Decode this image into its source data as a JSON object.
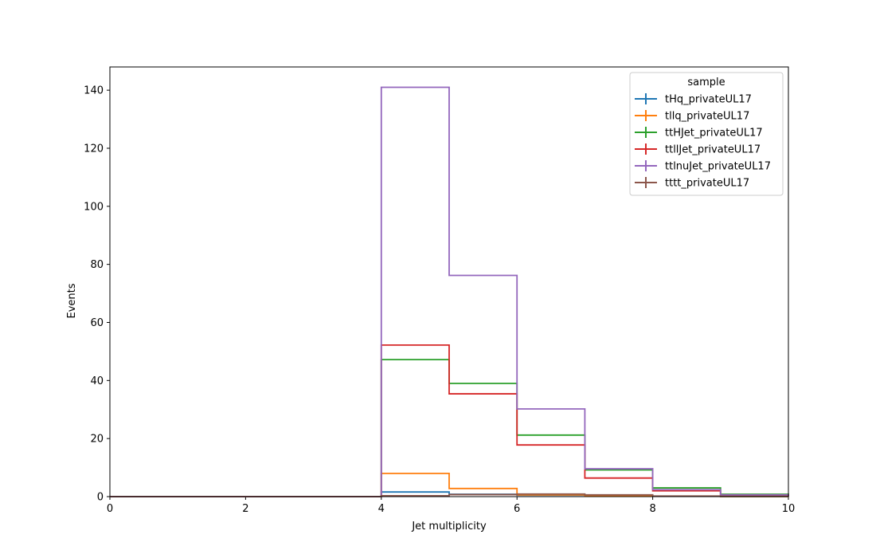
{
  "chart_data": {
    "type": "step",
    "xlabel": "Jet multiplicity",
    "ylabel": "Events",
    "xlim": [
      0,
      10
    ],
    "ylim": [
      0,
      148
    ],
    "x_ticks": [
      0,
      2,
      4,
      6,
      8,
      10
    ],
    "y_ticks": [
      0,
      20,
      40,
      60,
      80,
      100,
      120,
      140
    ],
    "bin_edges": [
      0,
      1,
      2,
      3,
      4,
      5,
      6,
      7,
      8,
      9,
      10
    ],
    "grid": false,
    "legend": {
      "title": "sample",
      "placement": "top-right"
    },
    "series": [
      {
        "name": "tHq_privateUL17",
        "color": "#1f77b4",
        "values": [
          0,
          0,
          0,
          0,
          1.6,
          0.8,
          0.5,
          0.2,
          0.1,
          0.05
        ]
      },
      {
        "name": "tllq_privateUL17",
        "color": "#ff7f0e",
        "values": [
          0,
          0,
          0,
          0,
          8.0,
          2.8,
          0.6,
          0.2,
          0.1,
          0.05
        ]
      },
      {
        "name": "ttHJet_privateUL17",
        "color": "#2ca02c",
        "values": [
          0,
          0,
          0,
          0,
          47.2,
          39.0,
          21.2,
          9.2,
          3.0,
          0.8
        ]
      },
      {
        "name": "ttllJet_privateUL17",
        "color": "#d62728",
        "values": [
          0,
          0,
          0,
          0,
          52.2,
          35.4,
          17.8,
          6.4,
          2.0,
          0.5
        ]
      },
      {
        "name": "ttlnuJet_privateUL17",
        "color": "#9467bd",
        "values": [
          0,
          0,
          0,
          0,
          141.0,
          76.2,
          30.2,
          9.6,
          2.4,
          0.6
        ]
      },
      {
        "name": "tttt_privateUL17",
        "color": "#8c564b",
        "values": [
          0,
          0,
          0,
          0,
          0.3,
          0.7,
          0.9,
          0.6,
          0.2,
          0.1
        ]
      }
    ]
  }
}
